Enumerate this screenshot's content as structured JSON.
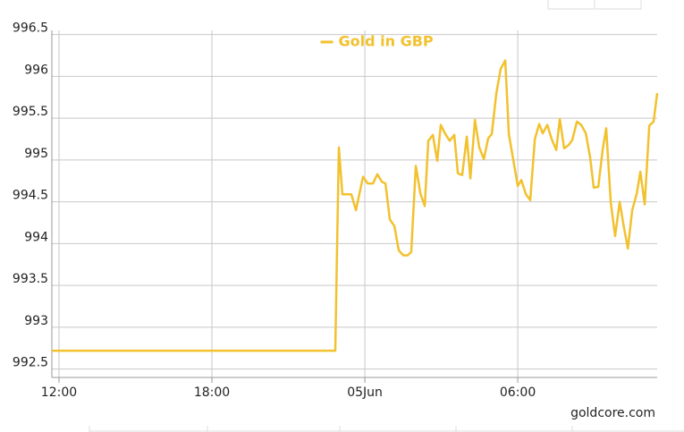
{
  "chart_data": {
    "type": "line",
    "legend_title": "Gold in GBP",
    "source": "goldcore.com",
    "xlim": [
      11.72,
      35.47
    ],
    "xticks": [
      {
        "value": 12,
        "label": "12:00"
      },
      {
        "value": 18,
        "label": "18:00"
      },
      {
        "value": 24,
        "label": "05Jun"
      },
      {
        "value": 30,
        "label": "06:00"
      }
    ],
    "ylim": [
      992.4,
      996.55
    ],
    "yticks": [
      992.5,
      993,
      993.5,
      994,
      994.5,
      995,
      995.5,
      996,
      996.5
    ],
    "grid": true,
    "legend": "top",
    "x": [
      11.72,
      22.84,
      22.98,
      23.12,
      23.47,
      23.65,
      23.93,
      24.11,
      24.32,
      24.49,
      24.67,
      24.81,
      24.98,
      25.16,
      25.33,
      25.51,
      25.68,
      25.82,
      26.0,
      26.18,
      26.35,
      26.49,
      26.67,
      26.84,
      26.98,
      27.16,
      27.33,
      27.51,
      27.65,
      27.82,
      28.0,
      28.14,
      28.32,
      28.49,
      28.67,
      28.84,
      28.98,
      29.16,
      29.33,
      29.51,
      29.65,
      29.82,
      30.0,
      30.14,
      30.32,
      30.49,
      30.67,
      30.84,
      30.98,
      31.16,
      31.33,
      31.51,
      31.65,
      31.82,
      32.0,
      32.14,
      32.32,
      32.49,
      32.67,
      32.84,
      32.98,
      33.16,
      33.33,
      33.47,
      33.65,
      33.82,
      34.0,
      34.14,
      34.32,
      34.49,
      34.67,
      34.81,
      34.98,
      35.16,
      35.33,
      35.47
    ],
    "series": [
      {
        "name": "Gold in GBP",
        "color": "#f2c12e",
        "values": [
          992.72,
          992.72,
          995.15,
          994.59,
          994.59,
          994.4,
          994.8,
          994.72,
          994.72,
          994.83,
          994.74,
          994.72,
          994.29,
          994.21,
          993.92,
          993.86,
          993.86,
          993.9,
          994.93,
          994.6,
          994.45,
          995.23,
          995.3,
          994.99,
          995.42,
          995.31,
          995.23,
          995.3,
          994.84,
          994.82,
          995.28,
          994.78,
          995.48,
          995.15,
          995.01,
          995.26,
          995.31,
          995.8,
          996.09,
          996.19,
          995.31,
          995.01,
          994.69,
          994.76,
          994.59,
          994.52,
          995.25,
          995.43,
          995.32,
          995.42,
          995.25,
          995.12,
          995.49,
          995.14,
          995.18,
          995.24,
          995.46,
          995.42,
          995.32,
          995.03,
          994.67,
          994.68,
          995.12,
          995.38,
          994.49,
          994.09,
          994.5,
          994.24,
          993.94,
          994.4,
          994.6,
          994.86,
          994.47,
          995.41,
          995.46,
          995.8
        ]
      }
    ]
  }
}
